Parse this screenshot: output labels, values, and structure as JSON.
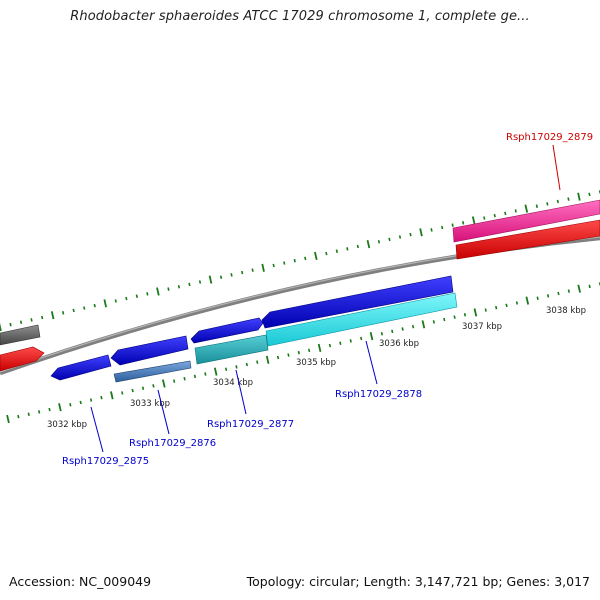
{
  "header": {
    "title": "Rhodobacter sphaeroides ATCC 17029 chromosome 1, complete ge..."
  },
  "ruler": {
    "ticks": [
      "3032 kbp",
      "3033 kbp",
      "3034 kbp",
      "3035 kbp",
      "3036 kbp",
      "3037 kbp",
      "3038 kbp"
    ]
  },
  "genes": [
    {
      "label": "Rsph17029_2875",
      "color": "#0000cc"
    },
    {
      "label": "Rsph17029_2876",
      "color": "#0000cc"
    },
    {
      "label": "Rsph17029_2877",
      "color": "#0000cc"
    },
    {
      "label": "Rsph17029_2878",
      "color": "#0000cc"
    },
    {
      "label": "Rsph17029_2879",
      "color": "#cc0000"
    }
  ],
  "colors": {
    "cds_blue": "#1010e0",
    "rna_cyan": "#33e6ee",
    "cds_red": "#ee1111",
    "cds_pink": "#ee3399",
    "cds_gray": "#666666",
    "misc_steelblue": "#4a7fc0",
    "tick_green": "#1a7a1a",
    "backbone": "#8c8c8c"
  },
  "footer": {
    "accession": "Accession: NC_009049",
    "summary": "Topology: circular; Length: 3,147,721 bp; Genes: 3,017"
  }
}
